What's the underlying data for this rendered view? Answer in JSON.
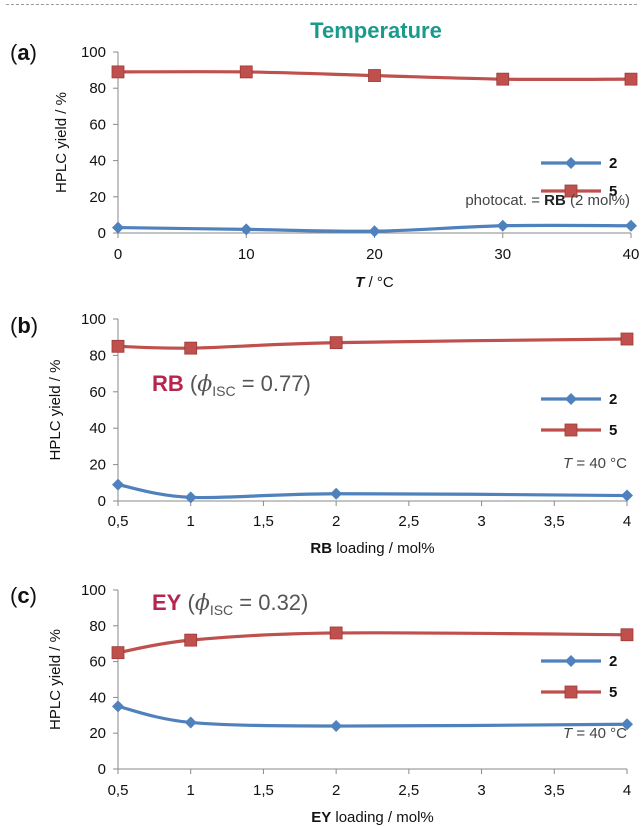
{
  "chart_data": [
    {
      "type": "line",
      "title": "Temperature",
      "panel_label": "a",
      "xlabel": {
        "symbol": "T",
        "rest": " / °C"
      },
      "ylabel": "HPLC yield / %",
      "ylim": [
        0,
        100
      ],
      "yticks": [
        "0",
        "20",
        "40",
        "60",
        "80",
        "100"
      ],
      "x": [
        0,
        10,
        20,
        30,
        40
      ],
      "xticks": [
        "0",
        "10",
        "20",
        "30",
        "40"
      ],
      "xlim": [
        0,
        40
      ],
      "series": [
        {
          "name": "2",
          "marker": "diamond",
          "color": "#4f81bd",
          "values": [
            3,
            2,
            1,
            4,
            4
          ]
        },
        {
          "name": "5",
          "marker": "square",
          "color": "#c0504d",
          "values": [
            89,
            89,
            87,
            85,
            85
          ]
        }
      ],
      "annotation": {
        "prefix": "photocat. = ",
        "bold": "RB",
        "suffix": " (2 mol%)"
      }
    },
    {
      "type": "line",
      "panel_label": "b",
      "xlabel": {
        "bold": "RB",
        "rest": " loading / mol%"
      },
      "ylabel": "HPLC yield / %",
      "ylim": [
        0,
        100
      ],
      "yticks": [
        "0",
        "20",
        "40",
        "60",
        "80",
        "100"
      ],
      "x": [
        0.5,
        1,
        2,
        4
      ],
      "xtick_values": [
        0.5,
        1,
        1.5,
        2,
        2.5,
        3,
        3.5,
        4
      ],
      "xticks": [
        "0,5",
        "1",
        "1,5",
        "2",
        "2,5",
        "3",
        "3,5",
        "4"
      ],
      "xlim": [
        0.5,
        4
      ],
      "series": [
        {
          "name": "2",
          "marker": "diamond",
          "color": "#4f81bd",
          "values": [
            9,
            2,
            4,
            3
          ]
        },
        {
          "name": "5",
          "marker": "square",
          "color": "#c0504d",
          "values": [
            85,
            84,
            87,
            89
          ]
        }
      ],
      "annotation": {
        "bold": "RB",
        "open": " (",
        "phi": "ϕ",
        "sub": "ISC",
        "value": " = 0.77)"
      },
      "note": {
        "symbol": "T",
        "rest": " = 40 °C"
      }
    },
    {
      "type": "line",
      "panel_label": "c",
      "xlabel": {
        "bold": "EY",
        "rest": " loading / mol%"
      },
      "ylabel": "HPLC yield / %",
      "ylim": [
        0,
        100
      ],
      "yticks": [
        "0",
        "20",
        "40",
        "60",
        "80",
        "100"
      ],
      "x": [
        0.5,
        1,
        2,
        4
      ],
      "xtick_values": [
        0.5,
        1,
        1.5,
        2,
        2.5,
        3,
        3.5,
        4
      ],
      "xticks": [
        "0,5",
        "1",
        "1,5",
        "2",
        "2,5",
        "3",
        "3,5",
        "4"
      ],
      "xlim": [
        0.5,
        4
      ],
      "series": [
        {
          "name": "2",
          "marker": "diamond",
          "color": "#4f81bd",
          "values": [
            35,
            26,
            24,
            25
          ]
        },
        {
          "name": "5",
          "marker": "square",
          "color": "#c0504d",
          "values": [
            65,
            72,
            76,
            75
          ]
        }
      ],
      "annotation": {
        "bold": "EY",
        "open": " (",
        "phi": "ϕ",
        "sub": "ISC",
        "value": " = 0.32)"
      },
      "note": {
        "symbol": "T",
        "rest": " = 40 °C"
      }
    }
  ]
}
